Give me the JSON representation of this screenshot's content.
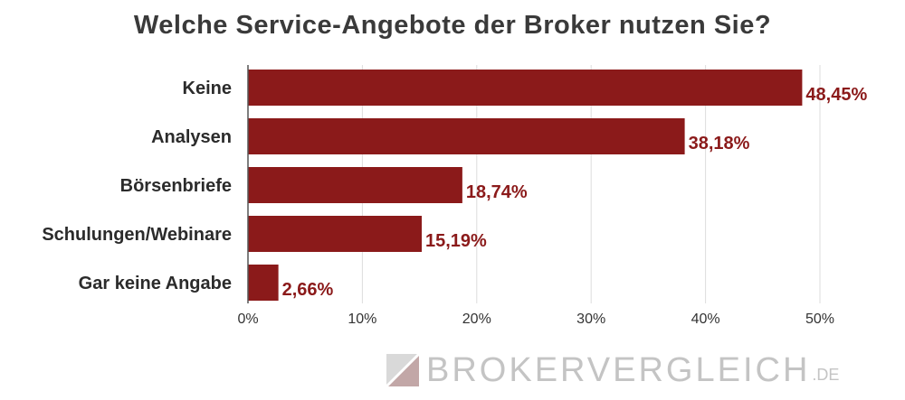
{
  "chart_data": {
    "type": "bar",
    "orientation": "horizontal",
    "title": "Welche Service-Angebote der Broker nutzen Sie?",
    "categories": [
      "Keine",
      "Analysen",
      "Börsenbriefe",
      "Schulungen/Webinare",
      "Gar keine Angabe"
    ],
    "values": [
      48.45,
      38.18,
      18.74,
      15.19,
      2.66
    ],
    "value_labels": [
      "48,45%",
      "38,18%",
      "18,74%",
      "15,19%",
      "2,66%"
    ],
    "xlim": [
      0,
      50
    ],
    "x_ticks": [
      0,
      10,
      20,
      30,
      40,
      50
    ],
    "x_tick_labels": [
      "0%",
      "10%",
      "20%",
      "30%",
      "40%",
      "50%"
    ],
    "grid": true,
    "bar_color": "#8b1a1a",
    "label_color": "#8b1a1a"
  },
  "watermark": {
    "brand": "BROKERVERGLEICH",
    "tld": ".DE"
  }
}
